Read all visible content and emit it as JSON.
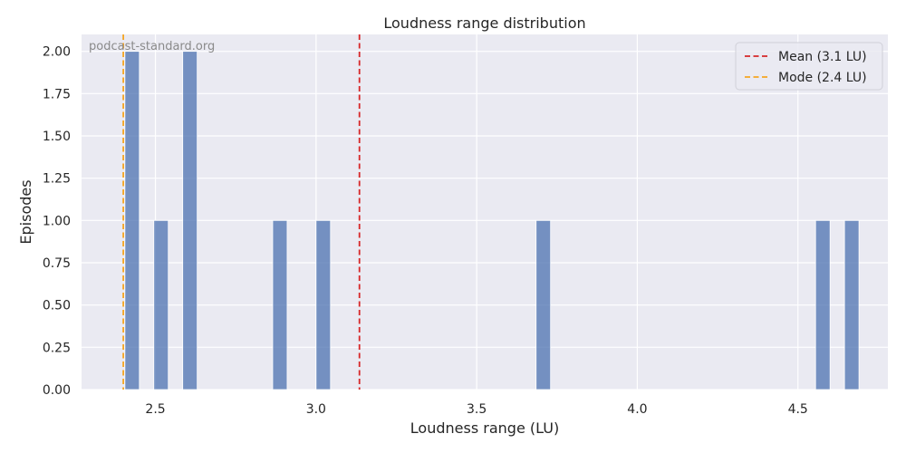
{
  "chart_data": {
    "type": "bar",
    "title": "Loudness range distribution",
    "xlabel": "Loudness range (LU)",
    "ylabel": "Episodes",
    "watermark": "podcast-standard.org",
    "xlim": [
      2.27,
      4.78
    ],
    "ylim": [
      0,
      2.1
    ],
    "x_ticks": [
      2.5,
      3.0,
      3.5,
      4.0,
      4.5
    ],
    "x_tick_labels": [
      "2.5",
      "3.0",
      "3.5",
      "4.0",
      "4.5"
    ],
    "y_ticks": [
      0,
      0.25,
      0.5,
      0.75,
      1.0,
      1.25,
      1.5,
      1.75,
      2.0
    ],
    "y_tick_labels": [
      "0.00",
      "0.25",
      "0.50",
      "0.75",
      "1.00",
      "1.25",
      "1.50",
      "1.75",
      "2.00"
    ],
    "bin_width": 0.045,
    "bins": [
      {
        "x0": 2.405,
        "value": 2
      },
      {
        "x0": 2.495,
        "value": 1
      },
      {
        "x0": 2.585,
        "value": 2
      },
      {
        "x0": 2.865,
        "value": 1
      },
      {
        "x0": 3.0,
        "value": 1
      },
      {
        "x0": 3.685,
        "value": 1
      },
      {
        "x0": 4.555,
        "value": 1
      },
      {
        "x0": 4.645,
        "value": 1
      }
    ],
    "bar_color": "#4c72b0",
    "reference_lines": [
      {
        "name": "Mean (3.1 LU)",
        "x": 3.135,
        "color": "#d62728",
        "style": "dashed"
      },
      {
        "name": "Mode (2.4 LU)",
        "x": 2.4,
        "color": "#f5a623",
        "style": "dashed"
      }
    ],
    "legend": {
      "placement": "top-right",
      "entries": [
        "Mean (3.1 LU)",
        "Mode (2.4 LU)"
      ]
    },
    "grid": true,
    "background_color": "#eaeaf2",
    "grid_color": "#ffffff"
  }
}
